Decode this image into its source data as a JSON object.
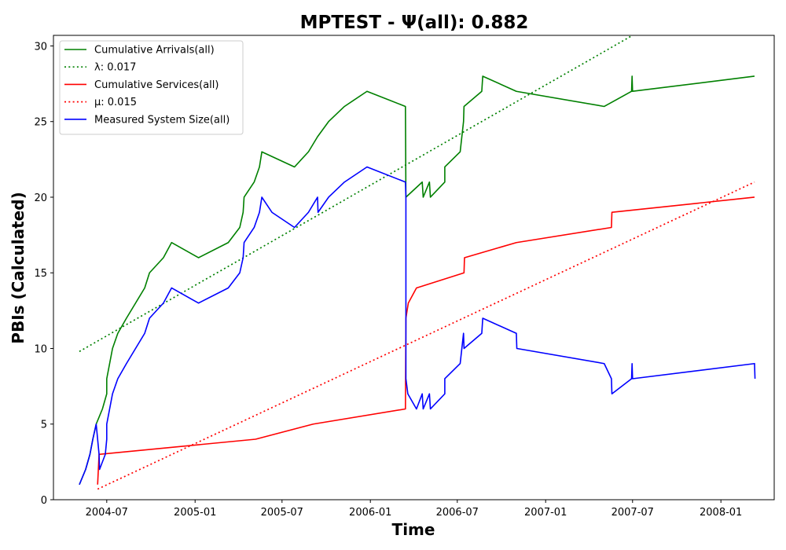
{
  "chart_data": {
    "type": "line",
    "title": "MPTEST -  Ψ(all): 0.882",
    "xlabel": "Time",
    "ylabel": "PBIs (Calculated)",
    "x_axis_type": "date",
    "xlim": [
      "2004-03-12",
      "2008-04-21"
    ],
    "ylim": [
      0,
      30.7
    ],
    "x_ticks": [
      "2004-07-01",
      "2005-01-01",
      "2005-07-01",
      "2006-01-01",
      "2006-07-01",
      "2007-01-01",
      "2007-07-01",
      "2008-01-01"
    ],
    "x_tick_labels": [
      "2004-07",
      "2005-01",
      "2005-07",
      "2006-01",
      "2006-07",
      "2007-01",
      "2007-07",
      "2008-01"
    ],
    "y_ticks": [
      0,
      5,
      10,
      15,
      20,
      25,
      30
    ],
    "grid": false,
    "legend_position": "upper-left",
    "series": [
      {
        "name": "Cumulative Arrivals(all)",
        "color": "#008000",
        "style": "solid",
        "points": [
          [
            "2004-05-05",
            1
          ],
          [
            "2004-05-18",
            2
          ],
          [
            "2004-05-27",
            3
          ],
          [
            "2004-06-02",
            4
          ],
          [
            "2004-06-09",
            5
          ],
          [
            "2004-06-22",
            6
          ],
          [
            "2004-07-01",
            7
          ],
          [
            "2004-07-01",
            8
          ],
          [
            "2004-07-07",
            9
          ],
          [
            "2004-07-13",
            10
          ],
          [
            "2004-07-24",
            11
          ],
          [
            "2004-08-11",
            12
          ],
          [
            "2004-08-30",
            13
          ],
          [
            "2004-09-18",
            14
          ],
          [
            "2004-09-28",
            15
          ],
          [
            "2004-10-27",
            16
          ],
          [
            "2004-11-13",
            17
          ],
          [
            "2005-01-08",
            16
          ],
          [
            "2005-03-11",
            17
          ],
          [
            "2005-04-04",
            18
          ],
          [
            "2005-04-11",
            19
          ],
          [
            "2005-04-13",
            20
          ],
          [
            "2005-05-04",
            21
          ],
          [
            "2005-05-15",
            22
          ],
          [
            "2005-05-20",
            23
          ],
          [
            "2005-07-27",
            22
          ],
          [
            "2005-08-25",
            23
          ],
          [
            "2005-09-13",
            24
          ],
          [
            "2005-10-06",
            25
          ],
          [
            "2005-11-08",
            26
          ],
          [
            "2005-12-25",
            27
          ],
          [
            "2006-03-15",
            26
          ],
          [
            "2006-03-16",
            20
          ],
          [
            "2006-04-19",
            21
          ],
          [
            "2006-04-21",
            20
          ],
          [
            "2006-05-04",
            21
          ],
          [
            "2006-05-06",
            20
          ],
          [
            "2006-06-05",
            21
          ],
          [
            "2006-06-05",
            22
          ],
          [
            "2006-07-07",
            23
          ],
          [
            "2006-07-14",
            25
          ],
          [
            "2006-07-15",
            26
          ],
          [
            "2006-08-21",
            27
          ],
          [
            "2006-08-23",
            28
          ],
          [
            "2006-11-01",
            27
          ],
          [
            "2007-05-03",
            26
          ],
          [
            "2007-06-29",
            27
          ],
          [
            "2007-06-30",
            28
          ],
          [
            "2007-07-01",
            27
          ],
          [
            "2008-03-11",
            28
          ]
        ]
      },
      {
        "name": "λ: 0.017",
        "color": "#008000",
        "style": "dotted",
        "points": [
          [
            "2004-05-05",
            9.8
          ],
          [
            "2007-07-01",
            30.7
          ]
        ]
      },
      {
        "name": "Cumulative Services(all)",
        "color": "#ff0000",
        "style": "solid",
        "points": [
          [
            "2004-06-12",
            1
          ],
          [
            "2004-06-15",
            3
          ],
          [
            "2005-05-07",
            4
          ],
          [
            "2005-09-04",
            5
          ],
          [
            "2006-03-15",
            6
          ],
          [
            "2006-03-16",
            12
          ],
          [
            "2006-03-21",
            13
          ],
          [
            "2006-04-07",
            14
          ],
          [
            "2006-07-15",
            15
          ],
          [
            "2006-07-16",
            16
          ],
          [
            "2006-11-01",
            17
          ],
          [
            "2007-05-18",
            18
          ],
          [
            "2007-05-19",
            19
          ],
          [
            "2008-03-11",
            20
          ]
        ]
      },
      {
        "name": "μ: 0.015",
        "color": "#ff0000",
        "style": "dotted",
        "points": [
          [
            "2004-06-12",
            0.7
          ],
          [
            "2008-03-11",
            21
          ]
        ]
      },
      {
        "name": "Measured System Size(all)",
        "color": "#0000ff",
        "style": "solid",
        "points": [
          [
            "2004-05-05",
            1
          ],
          [
            "2004-05-18",
            2
          ],
          [
            "2004-05-27",
            3
          ],
          [
            "2004-06-02",
            4
          ],
          [
            "2004-06-09",
            5
          ],
          [
            "2004-06-15",
            3
          ],
          [
            "2004-06-16",
            2
          ],
          [
            "2004-06-28",
            3
          ],
          [
            "2004-07-01",
            4
          ],
          [
            "2004-07-01",
            5
          ],
          [
            "2004-07-07",
            6
          ],
          [
            "2004-07-13",
            7
          ],
          [
            "2004-07-24",
            8
          ],
          [
            "2004-08-11",
            9
          ],
          [
            "2004-08-30",
            10
          ],
          [
            "2004-09-18",
            11
          ],
          [
            "2004-09-28",
            12
          ],
          [
            "2004-10-27",
            13
          ],
          [
            "2004-11-13",
            14
          ],
          [
            "2005-01-08",
            13
          ],
          [
            "2005-03-11",
            14
          ],
          [
            "2005-04-04",
            15
          ],
          [
            "2005-04-11",
            16
          ],
          [
            "2005-04-13",
            17
          ],
          [
            "2005-05-04",
            18
          ],
          [
            "2005-05-15",
            19
          ],
          [
            "2005-05-20",
            20
          ],
          [
            "2005-06-10",
            19
          ],
          [
            "2005-07-27",
            18
          ],
          [
            "2005-08-25",
            19
          ],
          [
            "2005-09-13",
            20
          ],
          [
            "2005-09-14",
            19
          ],
          [
            "2005-10-06",
            20
          ],
          [
            "2005-11-08",
            21
          ],
          [
            "2005-12-25",
            22
          ],
          [
            "2006-03-15",
            21
          ],
          [
            "2006-03-16",
            20
          ],
          [
            "2006-03-16",
            8
          ],
          [
            "2006-03-20",
            7
          ],
          [
            "2006-04-07",
            6
          ],
          [
            "2006-04-19",
            7
          ],
          [
            "2006-04-21",
            6
          ],
          [
            "2006-05-04",
            7
          ],
          [
            "2006-05-06",
            6
          ],
          [
            "2006-06-05",
            7
          ],
          [
            "2006-06-05",
            8
          ],
          [
            "2006-07-07",
            9
          ],
          [
            "2006-07-14",
            11
          ],
          [
            "2006-07-15",
            10
          ],
          [
            "2006-08-21",
            11
          ],
          [
            "2006-08-23",
            12
          ],
          [
            "2006-11-01",
            11
          ],
          [
            "2006-11-02",
            10
          ],
          [
            "2007-05-03",
            9
          ],
          [
            "2007-05-18",
            8
          ],
          [
            "2007-05-19",
            7
          ],
          [
            "2007-06-29",
            8
          ],
          [
            "2007-06-30",
            9
          ],
          [
            "2007-07-01",
            8
          ],
          [
            "2008-03-11",
            9
          ],
          [
            "2008-03-12",
            8
          ]
        ]
      }
    ]
  }
}
